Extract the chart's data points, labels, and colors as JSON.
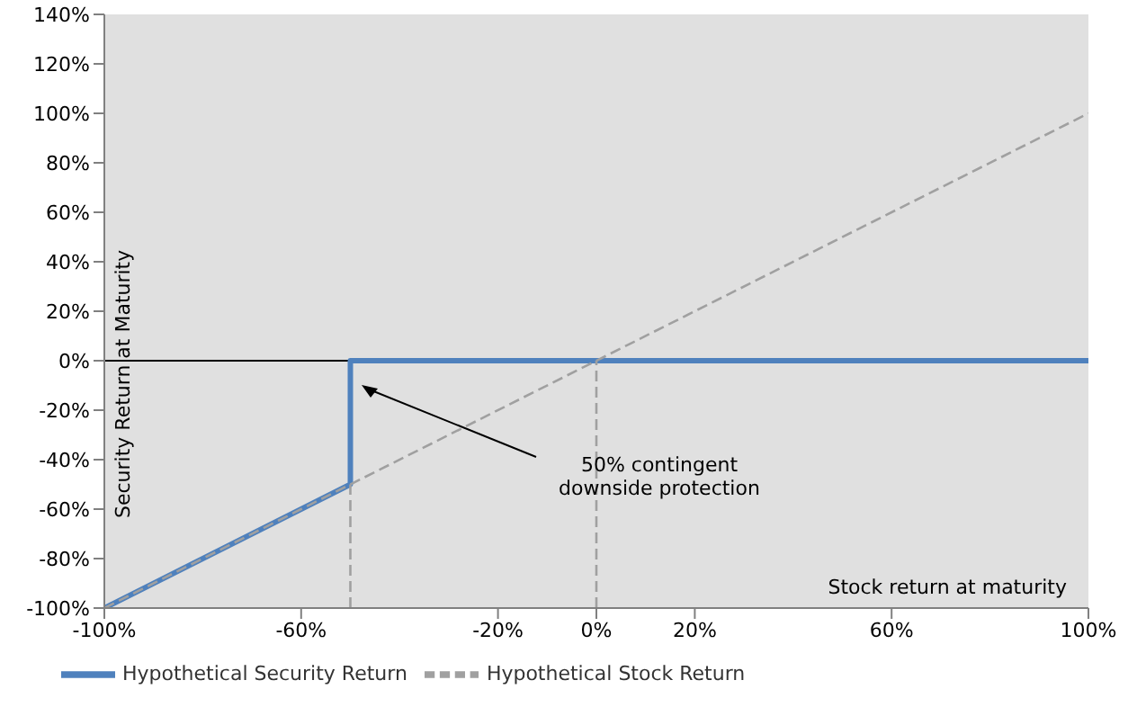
{
  "chart_data": {
    "type": "line",
    "xlabel": "Stock return at maturity",
    "ylabel": "Security Return at Maturity",
    "xlim": [
      -100,
      100
    ],
    "xticks": [
      {
        "value": -100,
        "label": "-100%"
      },
      {
        "value": -60,
        "label": "-60%"
      },
      {
        "value": -20,
        "label": "-20%"
      },
      {
        "value": 0,
        "label": "0%"
      },
      {
        "value": 20,
        "label": "20%"
      },
      {
        "value": 60,
        "label": "60%"
      },
      {
        "value": 100,
        "label": "100%"
      }
    ],
    "ylim": [
      -100,
      140
    ],
    "yticks": [
      {
        "value": -100,
        "label": "-100%"
      },
      {
        "value": -80,
        "label": "-80%"
      },
      {
        "value": -60,
        "label": "-60%"
      },
      {
        "value": -40,
        "label": "-40%"
      },
      {
        "value": -20,
        "label": "-20%"
      },
      {
        "value": 0,
        "label": "0%"
      },
      {
        "value": 20,
        "label": "20%"
      },
      {
        "value": 40,
        "label": "40%"
      },
      {
        "value": 60,
        "label": "60%"
      },
      {
        "value": 80,
        "label": "80%"
      },
      {
        "value": 100,
        "label": "100%"
      },
      {
        "value": 120,
        "label": "120%"
      },
      {
        "value": 140,
        "label": "140%"
      }
    ],
    "series": [
      {
        "type": "line",
        "name": "Hypothetical Security Return",
        "color": "#4f81bd",
        "line_style": "solid",
        "x": [
          -100,
          -50,
          -50,
          100
        ],
        "values": [
          -100,
          -50,
          0,
          0
        ]
      },
      {
        "type": "line",
        "name": "Hypothetical Stock Return",
        "color": "#a0a0a0",
        "line_style": "dashed",
        "x": [
          -100,
          100
        ],
        "values": [
          -100,
          100
        ]
      },
      {
        "type": "line",
        "color": "#a0a0a0",
        "line_style": "dashed",
        "x": [
          -50,
          -50
        ],
        "values": [
          -100,
          -50
        ]
      },
      {
        "type": "line",
        "color": "#a0a0a0",
        "line_style": "dashed",
        "x": [
          0,
          0
        ],
        "values": [
          -100,
          0
        ]
      }
    ],
    "ref_lines": [
      {
        "axis": "y",
        "value": 0,
        "color": "#000000"
      }
    ],
    "annotations": [
      "50% contingent downside protection"
    ],
    "marker": "none",
    "grid": false,
    "legend": "bottom"
  }
}
